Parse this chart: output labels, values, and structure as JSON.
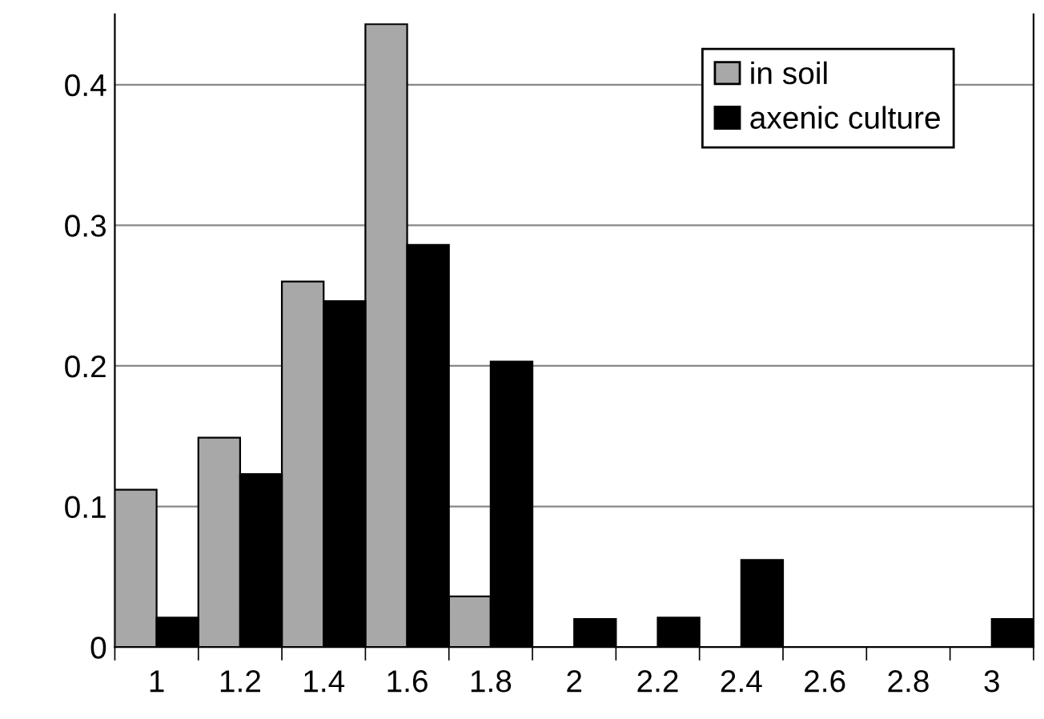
{
  "chart_data": {
    "type": "bar",
    "categories": [
      "1",
      "1.2",
      "1.4",
      "1.6",
      "1.8",
      "2",
      "2.2",
      "2.4",
      "2.6",
      "2.8",
      "3"
    ],
    "series": [
      {
        "name": "in soil",
        "color": "#a8a8a8",
        "values": [
          0.112,
          0.149,
          0.26,
          0.443,
          0.036,
          0,
          0,
          0,
          0,
          0,
          0
        ]
      },
      {
        "name": "axenic culture",
        "color": "#000000",
        "values": [
          0.021,
          0.123,
          0.246,
          0.286,
          0.203,
          0.02,
          0.021,
          0.062,
          0,
          0,
          0.02
        ]
      }
    ],
    "ylim": [
      0,
      0.45
    ],
    "yticks": [
      0,
      0.1,
      0.2,
      0.3,
      0.4
    ],
    "grid": "y",
    "legend": "top right"
  }
}
